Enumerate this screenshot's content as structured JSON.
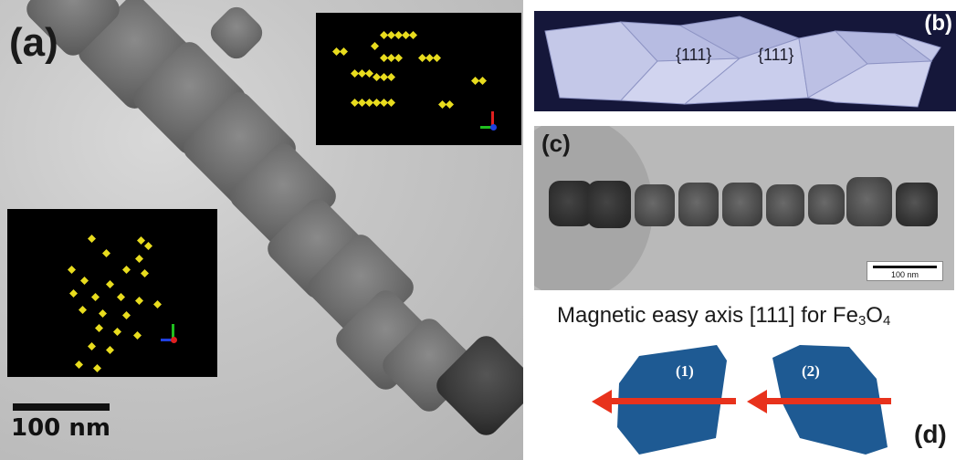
{
  "panel_a": {
    "label": "(a)",
    "scale_bar": "100 nm"
  },
  "panel_b": {
    "label": "(b)",
    "facet_left": "{111}",
    "facet_right": "{111}"
  },
  "panel_c": {
    "label": "(c)",
    "scale_bar": "100 nm"
  },
  "caption": {
    "text": "Magnetic easy axis [111] for Fe",
    "sub3": "3",
    "o": "O",
    "sub4": "4"
  },
  "panel_d": {
    "label": "(d)",
    "shape_1": "(1)",
    "shape_2": "(2)"
  },
  "colors": {
    "shape_blue": "#1e5a93",
    "arrow_red": "#e8321c",
    "octahedra_yellow": "#e8dc1e"
  }
}
